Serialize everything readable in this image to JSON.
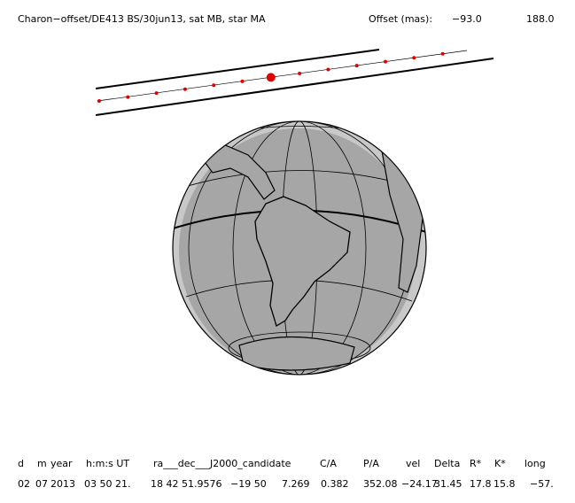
{
  "header": {
    "title": "Charon−offset/DE413 BS/30jun13, sat MB, star MA",
    "offset_label": "Offset (mas):",
    "offset_x": "−93.0",
    "offset_y": "188.0"
  },
  "table": {
    "columns": [
      "d",
      "m",
      "year",
      "h:m:s UT",
      "ra___dec___J2000_candidate",
      "C/A",
      "P/A",
      "vel",
      "Delta",
      "R*",
      "K*",
      "long"
    ],
    "values": [
      "02",
      "07",
      "2013",
      "03 50 21.",
      "18 42 51.9576",
      "−19 50",
      "7.269",
      "0.382",
      "352.08",
      "−24.17",
      "31.45",
      "17.8",
      "15.8",
      "−57."
    ]
  }
}
